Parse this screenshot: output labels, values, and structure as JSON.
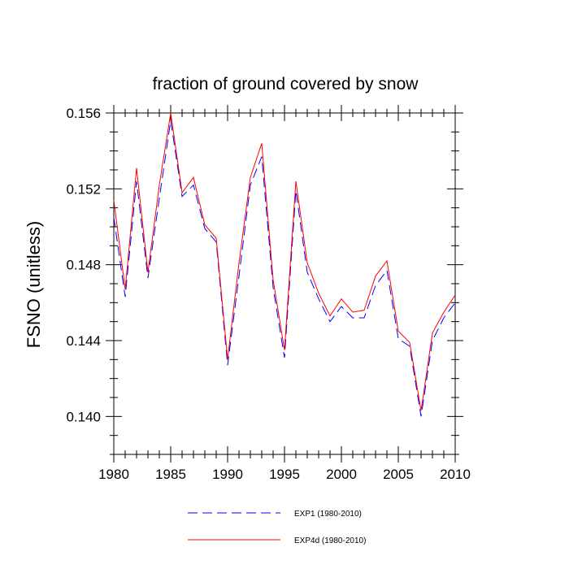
{
  "chart_data": {
    "type": "line",
    "title": "fraction of ground covered by snow",
    "xlabel": "",
    "ylabel": "FSNO  (unitless)",
    "xlim": [
      1980,
      2010
    ],
    "ylim": [
      0.138,
      0.156
    ],
    "x_ticks": [
      "1980",
      "1985",
      "1990",
      "1995",
      "2000",
      "2005",
      "2010"
    ],
    "y_ticks": [
      "0.140",
      "0.144",
      "0.148",
      "0.152",
      "0.156"
    ],
    "legend_position": "bottom-center",
    "grid": false,
    "x": [
      1980,
      1981,
      1982,
      1983,
      1984,
      1985,
      1986,
      1987,
      1988,
      1989,
      1990,
      1991,
      1992,
      1993,
      1994,
      1995,
      1996,
      1997,
      1998,
      1999,
      2000,
      2001,
      2002,
      2003,
      2004,
      2005,
      2006,
      2007,
      2008,
      2009,
      2010
    ],
    "series": [
      {
        "name": "EXP1 (1980-2010)",
        "color": "#0000ff",
        "dash": "dashed",
        "values": [
          0.1505,
          0.1463,
          0.1524,
          0.1473,
          0.1515,
          0.1556,
          0.1516,
          0.1522,
          0.1499,
          0.1492,
          0.1427,
          0.1474,
          0.1522,
          0.1537,
          0.1468,
          0.1431,
          0.1519,
          0.1476,
          0.1462,
          0.145,
          0.1458,
          0.1452,
          0.1452,
          0.1469,
          0.1477,
          0.1441,
          0.1437,
          0.14,
          0.144,
          0.1452,
          0.146
        ]
      },
      {
        "name": "EXP4d (1980-2010)",
        "color": "#ff0000",
        "dash": "solid",
        "values": [
          0.1514,
          0.1467,
          0.1531,
          0.1476,
          0.1522,
          0.156,
          0.1518,
          0.1526,
          0.1501,
          0.1494,
          0.143,
          0.1481,
          0.1526,
          0.1544,
          0.1472,
          0.1435,
          0.1524,
          0.1481,
          0.1465,
          0.1453,
          0.1462,
          0.1455,
          0.1456,
          0.1474,
          0.1482,
          0.1445,
          0.1439,
          0.1403,
          0.1444,
          0.1455,
          0.1464
        ]
      }
    ]
  }
}
